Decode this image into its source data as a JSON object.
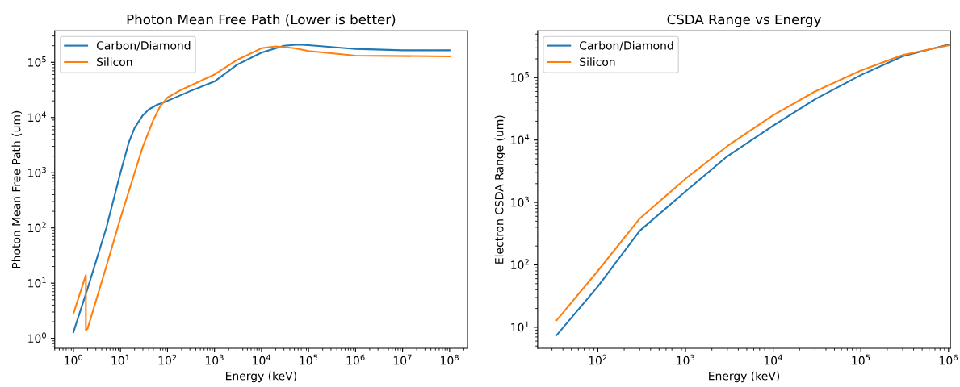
{
  "chart_data": [
    {
      "type": "line",
      "title": "Photon Mean Free Path (Lower is better)",
      "xlabel": "Energy (keV)",
      "ylabel": "Photon Mean Free Path (um)",
      "log": "xy",
      "grid": false,
      "legend": "top left",
      "xlim": [
        0.4,
        240000000.0
      ],
      "ylim": [
        0.66,
        370000.0
      ],
      "xticks": [
        {
          "value": 1,
          "label": "10$^{0}$"
        },
        {
          "value": 10,
          "label": "10$^{1}$"
        },
        {
          "value": 100,
          "label": "10$^{2}$"
        },
        {
          "value": 1000,
          "label": "10$^{3}$"
        },
        {
          "value": 10000,
          "label": "10$^{4}$"
        },
        {
          "value": 100000,
          "label": "10$^{5}$"
        },
        {
          "value": 1000000,
          "label": "10$^{6}$"
        },
        {
          "value": 10000000,
          "label": "10$^{7}$"
        },
        {
          "value": 100000000,
          "label": "10$^{8}$"
        }
      ],
      "yticks": [
        {
          "value": 1,
          "label": "10$^{0}$"
        },
        {
          "value": 10,
          "label": "10$^{1}$"
        },
        {
          "value": 100,
          "label": "10$^{2}$"
        },
        {
          "value": 1000,
          "label": "10$^{3}$"
        },
        {
          "value": 10000,
          "label": "10$^{4}$"
        },
        {
          "value": 100000,
          "label": "10$^{5}$"
        }
      ],
      "series": [
        {
          "name": "Carbon/Diamond",
          "color": "#1f77b4",
          "x": [
            1,
            2,
            5,
            10,
            15,
            20,
            30,
            40,
            60,
            100,
            300,
            1000,
            3000,
            10000,
            30000,
            60000,
            100000,
            1000000,
            10000000,
            100000000
          ],
          "values": [
            1.3,
            8,
            100,
            1000,
            3500,
            6500,
            11000,
            14000,
            17000,
            20000,
            30000,
            45000,
            90000,
            150000,
            200000,
            210000,
            205000,
            175000,
            165000,
            165000
          ]
        },
        {
          "name": "Silicon",
          "color": "#ff7f0e",
          "x": [
            1,
            1.84,
            1.84,
            2,
            5,
            10,
            20,
            30,
            50,
            70,
            100,
            200,
            1000,
            3000,
            10000,
            20000,
            50000,
            100000,
            1000000,
            100000000
          ],
          "values": [
            2.8,
            14,
            1.4,
            1.5,
            20,
            150,
            1000,
            3000,
            9000,
            16000,
            23000,
            32000,
            60000,
            110000,
            180000,
            195000,
            180000,
            160000,
            132000,
            128000
          ]
        }
      ]
    },
    {
      "type": "line",
      "title": "CSDA Range vs Energy",
      "xlabel": "Energy (keV)",
      "ylabel": "Electron CSDA Range (um)",
      "log": "xy",
      "grid": false,
      "legend": "top left",
      "xlim": [
        20.6,
        1050000.0
      ],
      "ylim": [
        4.6,
        560000.0
      ],
      "xticks": [
        {
          "value": 100,
          "label": "10$^{2}$"
        },
        {
          "value": 1000,
          "label": "10$^{3}$"
        },
        {
          "value": 10000,
          "label": "10$^{4}$"
        },
        {
          "value": 100000,
          "label": "10$^{5}$"
        },
        {
          "value": 1000000,
          "label": "10$^{6}$"
        }
      ],
      "yticks": [
        {
          "value": 10,
          "label": "10$^{1}$"
        },
        {
          "value": 100,
          "label": "10$^{2}$"
        },
        {
          "value": 1000,
          "label": "10$^{3}$"
        },
        {
          "value": 10000,
          "label": "10$^{4}$"
        },
        {
          "value": 100000,
          "label": "10$^{5}$"
        }
      ],
      "series": [
        {
          "name": "Carbon/Diamond",
          "color": "#1f77b4",
          "x": [
            34,
            100,
            300,
            1000,
            3000,
            10000,
            30000,
            100000,
            300000,
            1000000
          ],
          "values": [
            7.5,
            45,
            350,
            1500,
            5500,
            17000,
            45000,
            110000,
            220000,
            340000
          ]
        },
        {
          "name": "Silicon",
          "color": "#ff7f0e",
          "x": [
            34,
            100,
            300,
            1000,
            3000,
            10000,
            30000,
            100000,
            300000,
            1000000
          ],
          "values": [
            13,
            80,
            550,
            2400,
            8000,
            25000,
            60000,
            130000,
            230000,
            330000
          ]
        }
      ]
    }
  ]
}
